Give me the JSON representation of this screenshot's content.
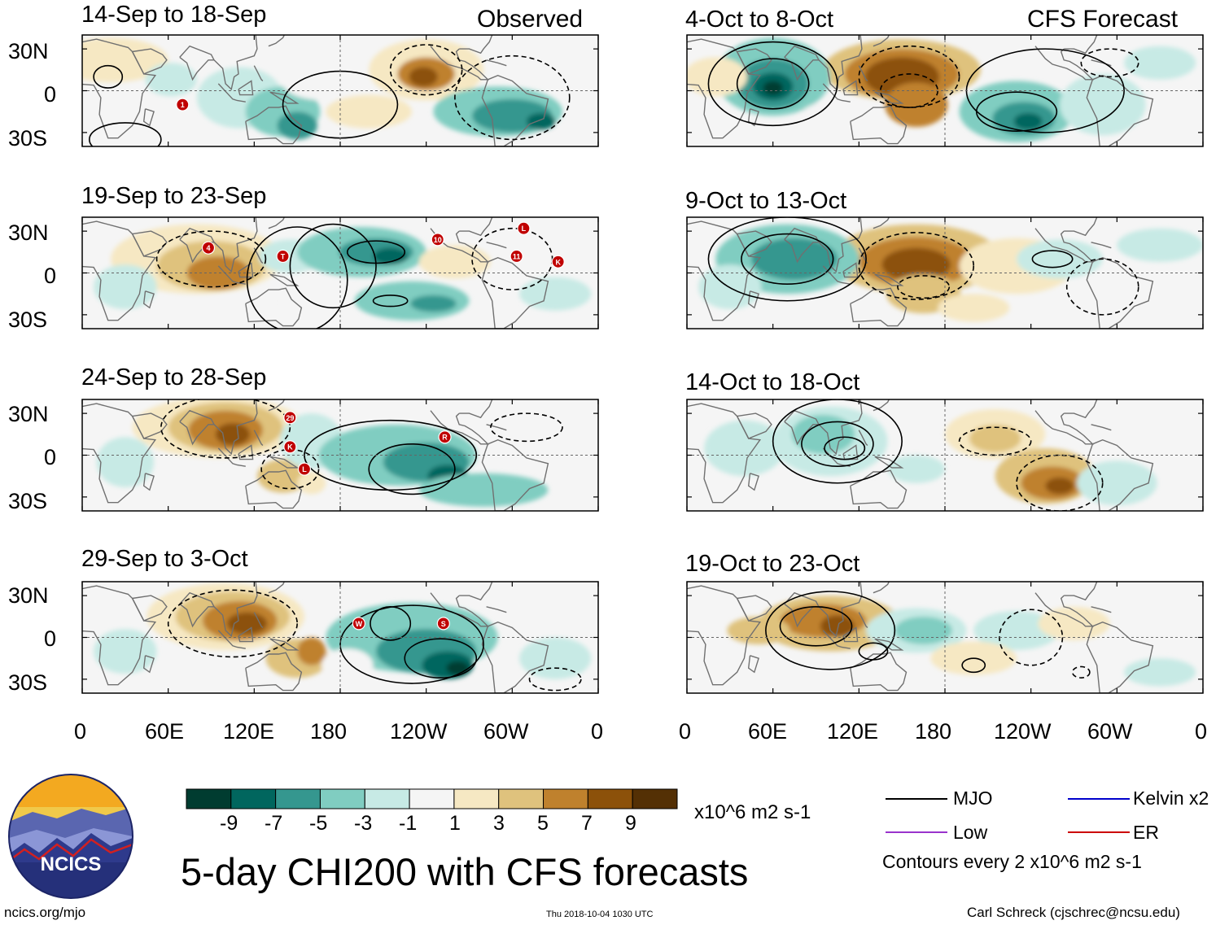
{
  "headers": {
    "observed": "Observed",
    "forecast": "CFS Forecast"
  },
  "left_periods": [
    "14-Sep to 18-Sep",
    "19-Sep to 23-Sep",
    "24-Sep to 28-Sep",
    "29-Sep to 3-Oct"
  ],
  "right_periods": [
    "4-Oct to 8-Oct",
    "9-Oct to 13-Oct",
    "14-Oct to 18-Oct",
    "19-Oct to 23-Oct"
  ],
  "lat_labels": [
    "30N",
    "0",
    "30S"
  ],
  "lon_labels": [
    "0",
    "60E",
    "120E",
    "180",
    "120W",
    "60W",
    "0"
  ],
  "colorbar": {
    "colors": [
      "#003c30",
      "#01665e",
      "#35978f",
      "#80cdc1",
      "#c7eae5",
      "#f5f5f5",
      "#f6e8c3",
      "#dfc27d",
      "#bf812d",
      "#8c510a",
      "#543005"
    ],
    "ticks": [
      "-9",
      "-7",
      "-5",
      "-3",
      "-1",
      "1",
      "3",
      "5",
      "7",
      "9"
    ],
    "units": "x10^6 m2 s-1"
  },
  "title": "5-day CHI200 with CFS forecasts",
  "legend": {
    "items": [
      {
        "label": "MJO",
        "color": "#000000"
      },
      {
        "label": "Kelvin x2",
        "color": "#0000cc"
      },
      {
        "label": "Low",
        "color": "#9933cc"
      },
      {
        "label": "ER",
        "color": "#cc0000"
      }
    ],
    "contour_note": "Contours every 2 x10^6 m2 s-1"
  },
  "logo_text": "NCICS",
  "footer": {
    "left": "ncics.org/mjo",
    "center": "Thu 2018-10-04 1030 UTC",
    "right": "Carl Schreck (cjschrec@ncsu.edu)"
  },
  "storm_markers": [
    {
      "panel": 0,
      "label": "1",
      "lon": 70,
      "lat": -10
    },
    {
      "panel": 1,
      "label": "4",
      "lon": 88,
      "lat": 18
    },
    {
      "panel": 1,
      "label": "T",
      "lon": 140,
      "lat": 12
    },
    {
      "panel": 1,
      "label": "10",
      "lon": 248,
      "lat": 24
    },
    {
      "panel": 1,
      "label": "L",
      "lon": 308,
      "lat": 32
    },
    {
      "panel": 1,
      "label": "11",
      "lon": 303,
      "lat": 12
    },
    {
      "panel": 1,
      "label": "K",
      "lon": 332,
      "lat": 8
    },
    {
      "panel": 2,
      "label": "29",
      "lon": 145,
      "lat": 27
    },
    {
      "panel": 2,
      "label": "K",
      "lon": 145,
      "lat": 6
    },
    {
      "panel": 2,
      "label": "L",
      "lon": 155,
      "lat": -10
    },
    {
      "panel": 2,
      "label": "R",
      "lon": 253,
      "lat": 13
    },
    {
      "panel": 3,
      "label": "W",
      "lon": 193,
      "lat": 10
    },
    {
      "panel": 3,
      "label": "S",
      "lon": 252,
      "lat": 10
    }
  ]
}
